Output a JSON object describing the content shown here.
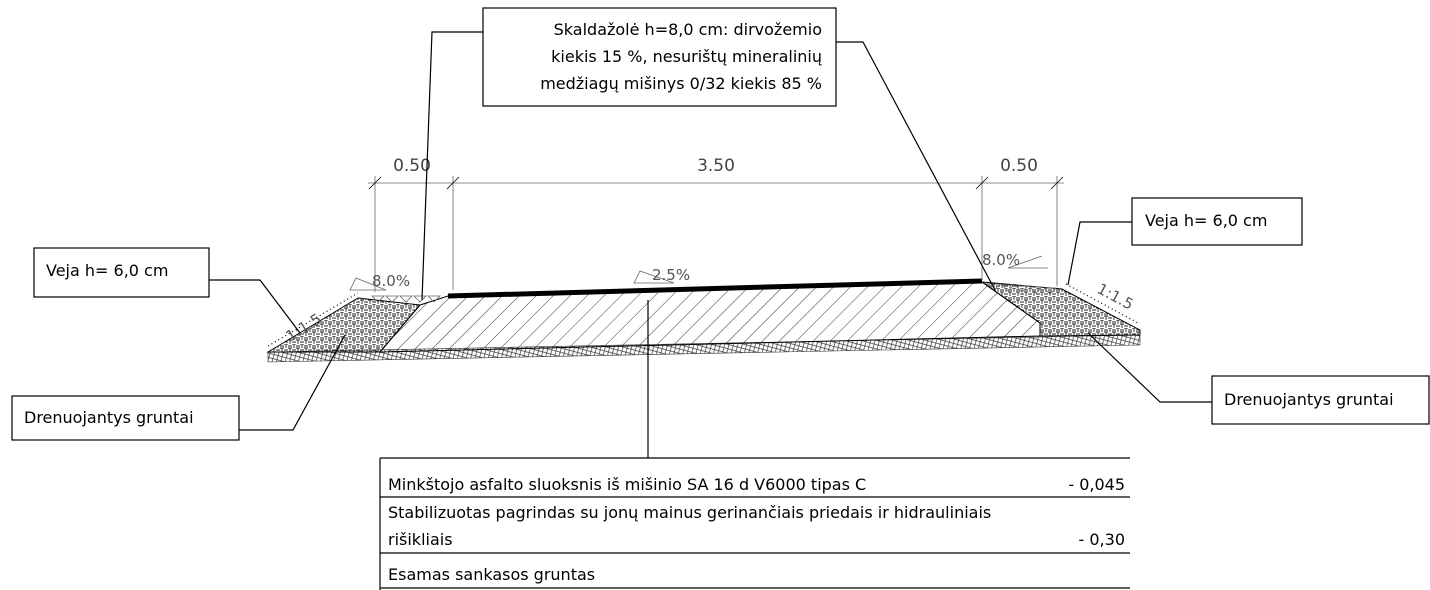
{
  "callouts": {
    "top": {
      "lines": [
        "Skaldažolė h=8,0 cm: dirvožemio",
        "kiekis 15 %, nesurištų mineralinių",
        "medžiagų mišinys 0/32 kiekis 85 %"
      ]
    },
    "veja_left": "Veja h= 6,0 cm",
    "veja_right": "Veja h= 6,0 cm",
    "drain_left": "Drenuojantys gruntai",
    "drain_right": "Drenuojantys gruntai"
  },
  "dimensions": [
    "0.50",
    "3.50",
    "0.50"
  ],
  "slopes": [
    "8.0%",
    "2.5%",
    "8.0%"
  ],
  "side_slopes": [
    "1:1.5",
    "1:1.5"
  ],
  "layers": [
    {
      "name_lines": [
        "Minkštojo asfalto sluoksnis iš mišinio SA 16 d V6000 tipas C"
      ],
      "thickness": "- 0,045"
    },
    {
      "name_lines": [
        "Stabilizuotas pagrindas su jonų mainus gerinančiais priedais ir hidrauliniais",
        "rišikliais"
      ],
      "thickness": "- 0,30"
    },
    {
      "name_lines": [
        "Esamas sankasos gruntas"
      ]
    }
  ]
}
